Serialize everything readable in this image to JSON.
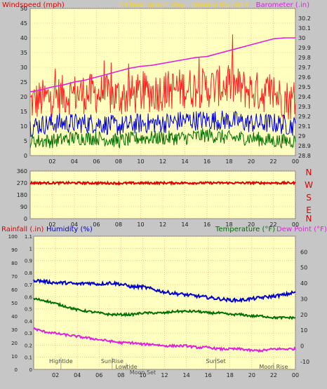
{
  "title": "24 hour graph day - January 05 2018",
  "colors": {
    "background": "#c6c6c6",
    "plot": "#ffffc0",
    "grid": "#f2a070",
    "title": "#ffd700",
    "wind": "#e00000",
    "wind_peak": "#ff2020",
    "wind_avg": "#0000e0",
    "wind_low": "#007000",
    "barometer": "#e020e0",
    "direction": "#e00000",
    "rain": "#e00000",
    "humidity": "#0000d0",
    "temperature": "#007000",
    "dewpoint": "#e020e0",
    "axis_text": "#202020",
    "event_text": "#505050"
  },
  "chart_data": [
    {
      "type": "line",
      "name": "wind-barometer",
      "ylabel_left": "Windspeed (mph)",
      "ylabel_right": "Barometer (.in)",
      "left_ylim": [
        0,
        50
      ],
      "left_ticks": [
        "0",
        "5",
        "10",
        "15",
        "20",
        "25",
        "30",
        "35",
        "40",
        "45",
        "50"
      ],
      "right_ylim": [
        28.8,
        30.3
      ],
      "right_ticks": [
        "28.8",
        "28.9",
        "29",
        "29.1",
        "29.2",
        "29.3",
        "29.4",
        "29.5",
        "29.6",
        "29.7",
        "29.8",
        "29.9",
        "30",
        "30.1",
        "30.2"
      ],
      "x_ticks": [
        "02",
        "04",
        "06",
        "08",
        "10",
        "12",
        "14",
        "16",
        "18",
        "20",
        "22",
        "00"
      ],
      "grid": true,
      "series": [
        {
          "axis": "right",
          "color_key": "barometer",
          "x": [
            0,
            1,
            2,
            3,
            4,
            5,
            6,
            7,
            8,
            9,
            10,
            11,
            12,
            13,
            14,
            15,
            16,
            17,
            18,
            19,
            20,
            21,
            22,
            23,
            24
          ],
          "values": [
            29.45,
            29.47,
            29.5,
            29.52,
            29.55,
            29.57,
            29.6,
            29.63,
            29.66,
            29.69,
            29.71,
            29.72,
            29.74,
            29.76,
            29.78,
            29.8,
            29.81,
            29.84,
            29.87,
            29.9,
            29.93,
            29.96,
            29.99,
            30.0,
            30.0
          ]
        },
        {
          "axis": "left",
          "color_key": "wind_peak",
          "x": [
            0,
            2,
            4,
            6,
            8,
            10,
            12,
            14,
            16,
            18,
            20,
            22,
            24
          ],
          "values": [
            18,
            20,
            21,
            21,
            20,
            21,
            22,
            23,
            23,
            24,
            22,
            21,
            18
          ]
        },
        {
          "axis": "left",
          "color_key": "wind_avg",
          "x": [
            0,
            2,
            4,
            6,
            8,
            10,
            12,
            14,
            16,
            18,
            20,
            22,
            24
          ],
          "values": [
            10,
            11,
            11,
            11,
            10,
            11,
            11,
            12,
            12,
            12,
            11,
            11,
            10
          ]
        },
        {
          "axis": "left",
          "color_key": "wind_low",
          "x": [
            0,
            2,
            4,
            6,
            8,
            10,
            12,
            14,
            16,
            18,
            20,
            22,
            24
          ],
          "values": [
            5,
            5,
            6,
            6,
            5,
            6,
            6,
            6,
            7,
            6,
            6,
            5,
            5
          ]
        }
      ]
    },
    {
      "type": "line",
      "name": "wind-direction",
      "yticks": [
        "0",
        "90",
        "180",
        "270",
        "360"
      ],
      "ylim": [
        0,
        360
      ],
      "compass": [
        "N",
        "W",
        "S",
        "E",
        "N"
      ],
      "x_ticks": [
        "02",
        "04",
        "06",
        "08",
        "10",
        "12",
        "14",
        "16",
        "18",
        "20",
        "22",
        "00"
      ],
      "grid": true,
      "series": [
        {
          "color_key": "direction",
          "x": [
            0,
            4,
            8,
            12,
            16,
            20,
            24
          ],
          "values": [
            270,
            270,
            268,
            270,
            270,
            270,
            270
          ]
        }
      ]
    },
    {
      "type": "line",
      "name": "humidity-temperature",
      "labels": {
        "rain": "Rainfall (.in)",
        "humidity": "Humidity (%)",
        "temperature": "Temperature (°F)",
        "dewpoint": "Dew Point (°F)"
      },
      "humidity_ylim": [
        0,
        100
      ],
      "humidity_ticks": [
        "0",
        "10",
        "20",
        "30",
        "40",
        "50",
        "60",
        "70",
        "80",
        "90",
        "100"
      ],
      "rain_ylim": [
        0,
        1.1
      ],
      "rain_ticks": [
        "0",
        "0.1",
        "0.2",
        "0.3",
        "0.4",
        "0.5",
        "0.6",
        "0.7",
        "0.8",
        "0.9",
        "1",
        "1.1"
      ],
      "temp_ylim": [
        -15,
        70
      ],
      "temp_ticks": [
        "-10",
        "0",
        "10",
        "20",
        "30",
        "40",
        "50",
        "60"
      ],
      "x_ticks": [
        "02",
        "04",
        "06",
        "08",
        "10",
        "12",
        "14",
        "16",
        "18",
        "20",
        "22",
        "00"
      ],
      "grid": true,
      "series": [
        {
          "axis": "humidity",
          "color_key": "humidity",
          "x": [
            0,
            1,
            2,
            3,
            4,
            5,
            6,
            7,
            8,
            9,
            10,
            11,
            12,
            13,
            14,
            15,
            16,
            17,
            18,
            19,
            20,
            21,
            22,
            23,
            24
          ],
          "values": [
            67,
            66,
            65,
            65,
            64,
            65,
            64,
            65,
            64,
            62,
            62,
            60,
            58,
            57,
            56,
            55,
            54,
            53,
            52,
            52,
            53,
            54,
            55,
            56,
            58
          ]
        },
        {
          "axis": "temp",
          "color_key": "temperature",
          "x": [
            0,
            1,
            2,
            3,
            4,
            5,
            6,
            7,
            8,
            9,
            10,
            11,
            12,
            13,
            14,
            15,
            16,
            17,
            18,
            19,
            20,
            21,
            22,
            23,
            24
          ],
          "values": [
            30,
            29,
            27,
            25,
            23,
            22,
            21,
            20,
            20,
            20,
            21,
            21,
            21,
            22,
            22,
            22,
            21,
            21,
            20,
            20,
            19,
            19,
            18,
            18,
            18
          ]
        },
        {
          "axis": "temp",
          "color_key": "dewpoint",
          "x": [
            0,
            1,
            2,
            3,
            4,
            5,
            6,
            7,
            8,
            9,
            10,
            11,
            12,
            13,
            14,
            15,
            16,
            17,
            18,
            19,
            20,
            21,
            22,
            23,
            24
          ],
          "values": [
            11,
            9,
            8,
            7,
            6,
            5,
            4,
            3,
            2,
            2,
            1,
            1,
            0,
            0,
            0,
            -1,
            -1,
            -2,
            -2,
            -2,
            -3,
            -3,
            -2,
            -2,
            -2
          ]
        }
      ],
      "events": [
        {
          "label": "Hightide",
          "x": 2.5,
          "row": 0
        },
        {
          "label": "SunRise",
          "x": 7.2,
          "row": 0
        },
        {
          "label": "Lowtide",
          "x": 8.5,
          "row": 1
        },
        {
          "label": "Moon Set",
          "x": 10.0,
          "row": 2
        },
        {
          "label": "SunSet",
          "x": 16.7,
          "row": 0
        },
        {
          "label": "Moon Rise",
          "x": 22.0,
          "row": 1
        }
      ]
    }
  ]
}
